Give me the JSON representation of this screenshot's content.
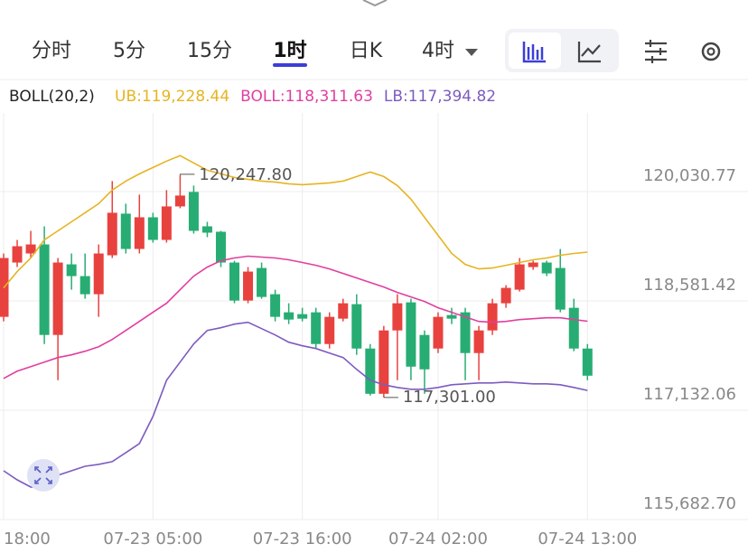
{
  "tabs": [
    "分时",
    "5分",
    "15分",
    "1时",
    "日K",
    "4时"
  ],
  "active_tab": "1时",
  "indicator": "BOLL(20,2)",
  "chart_data": {
    "type": "candlestick",
    "categories": [
      "18:00",
      null,
      null,
      null,
      null,
      null,
      null,
      null,
      null,
      null,
      null,
      "07-23 05:00",
      null,
      null,
      null,
      null,
      null,
      null,
      null,
      null,
      null,
      null,
      "07-23 16:00",
      null,
      null,
      null,
      null,
      null,
      null,
      null,
      null,
      null,
      "07-24 02:00",
      null,
      null,
      null,
      null,
      null,
      null,
      null,
      null,
      null,
      null,
      "07-24 13:00"
    ],
    "open": [
      118370,
      119090,
      119210,
      119330,
      118130,
      119066,
      118910,
      118670,
      119186,
      119738,
      119270,
      119690,
      119390,
      119834,
      120026,
      119570,
      119498,
      119090,
      118586,
      119018,
      118670,
      118430,
      118406,
      118430,
      118010,
      118346,
      118538,
      117950,
      117350,
      118190,
      118562,
      118130,
      117950,
      118394,
      118430,
      117890,
      118190,
      118550,
      118730,
      119030,
      119090,
      119018,
      118490,
      117950
    ],
    "close": [
      119150,
      119306,
      119330,
      118130,
      119090,
      118910,
      118670,
      119210,
      119750,
      119270,
      119690,
      119390,
      119834,
      119978,
      119510,
      119486,
      119090,
      118586,
      118970,
      118634,
      118370,
      118334,
      118346,
      118010,
      118370,
      118550,
      117950,
      117350,
      118190,
      118550,
      117710,
      117674,
      118370,
      118346,
      117890,
      118190,
      118550,
      118754,
      119066,
      119090,
      118946,
      118466,
      117950,
      117590
    ],
    "high": [
      119210,
      119390,
      119510,
      119570,
      119150,
      119210,
      119210,
      119330,
      120170,
      119870,
      119990,
      119750,
      120050,
      120247.8,
      120110,
      119630,
      119510,
      119114,
      119030,
      119090,
      118730,
      118550,
      118490,
      118490,
      118430,
      118610,
      118670,
      118010,
      118250,
      118670,
      118610,
      118190,
      118430,
      118490,
      118490,
      118250,
      118610,
      118790,
      119150,
      119114,
      119114,
      119270,
      118610,
      118010
    ],
    "low": [
      118310,
      119030,
      119150,
      118010,
      117530,
      118730,
      118610,
      118370,
      119150,
      119210,
      119210,
      119354,
      119354,
      119810,
      119474,
      119426,
      119030,
      118550,
      118550,
      118610,
      118310,
      118274,
      118310,
      117950,
      117950,
      118310,
      117866,
      117326,
      117301.0,
      117530,
      117530,
      117350,
      117890,
      118274,
      117530,
      117530,
      118130,
      118490,
      118706,
      118994,
      118910,
      118430,
      117914,
      117530
    ],
    "up_color": "#e8423f",
    "down_color": "#27ad73",
    "max_label": "120,247.80",
    "min_label": "117,301.00",
    "bands": [
      {
        "label": "UB:119,228.44",
        "color": "#e6b422",
        "values": [
          118754,
          118970,
          119150,
          119390,
          119510,
          119630,
          119750,
          119870,
          120050,
          120170,
          120266,
          120350,
          120434,
          120506,
          120410,
          120314,
          120266,
          120218,
          120194,
          120170,
          120158,
          120134,
          120122,
          120134,
          120146,
          120170,
          120230,
          120290,
          120230,
          120110,
          119930,
          119690,
          119450,
          119210,
          119066,
          119006,
          119018,
          119054,
          119090,
          119126,
          119150,
          119186,
          119210,
          119228.44
        ]
      },
      {
        "label": "BOLL:118,311.63",
        "color": "#e03fa0",
        "values": [
          117554,
          117650,
          117710,
          117770,
          117830,
          117866,
          117914,
          117974,
          118070,
          118190,
          118310,
          118430,
          118550,
          118730,
          118910,
          119030,
          119114,
          119150,
          119174,
          119162,
          119150,
          119126,
          119090,
          119054,
          119006,
          118946,
          118886,
          118826,
          118766,
          118694,
          118634,
          118574,
          118490,
          118430,
          118370,
          118310,
          118298,
          118310,
          118334,
          118346,
          118358,
          118358,
          118334,
          118311.63
        ]
      },
      {
        "label": "LB:117,394.82",
        "color": "#7d5bbf",
        "values": [
          116330,
          116210,
          116114,
          116126,
          116270,
          116330,
          116390,
          116414,
          116450,
          116570,
          116690,
          117050,
          117530,
          117770,
          118010,
          118190,
          118226,
          118274,
          118298,
          118214,
          118130,
          118034,
          117986,
          117950,
          117890,
          117830,
          117674,
          117530,
          117470,
          117434,
          117410,
          117410,
          117434,
          117470,
          117482,
          117494,
          117494,
          117506,
          117494,
          117482,
          117482,
          117470,
          117434,
          117394.82
        ]
      }
    ],
    "ylim": [
      115682.7,
      121073
    ],
    "yticks": [
      {
        "value": 120030.77,
        "label": "120,030.77"
      },
      {
        "value": 118581.42,
        "label": "118,581.42"
      },
      {
        "value": 117132.06,
        "label": "117,132.06"
      },
      {
        "value": 115682.7,
        "label": "115,682.70"
      }
    ],
    "grid": true
  }
}
